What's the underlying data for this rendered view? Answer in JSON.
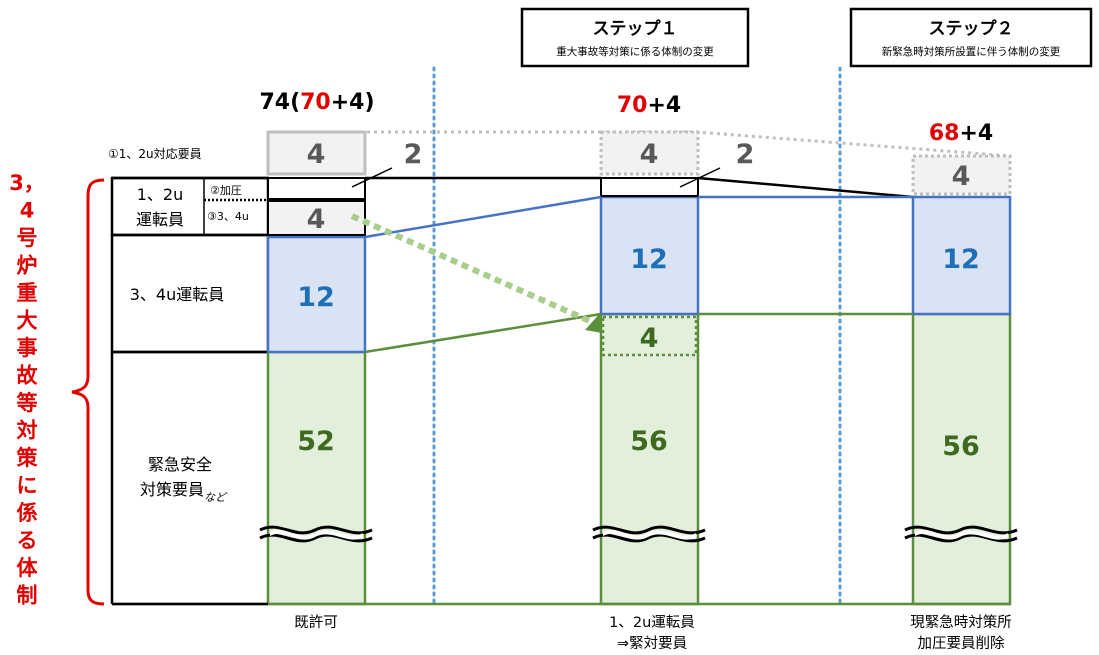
{
  "steps": [
    {
      "title": "ステップ１",
      "subtitle": "重大事故等対策に係る体制の変更"
    },
    {
      "title": "ステップ２",
      "subtitle": "新緊急時対策所設置に伴う体制の変更"
    }
  ],
  "totals": {
    "col1": {
      "open": "74(",
      "red": "70",
      "plus": "+4)"
    },
    "col2": {
      "red": "70",
      "plus": "+4"
    },
    "col3": {
      "red": "68",
      "plus": "+4"
    }
  },
  "row_labels": {
    "r1": "①1、2u対応要員",
    "unit12_a": "1、2u",
    "unit12_b": "運転員",
    "r2": "②加圧",
    "r3": "③3、4u",
    "unit34": "3、4u運転員",
    "emerg_a": "緊急安全",
    "emerg_b": "対策要員",
    "emerg_sub": "など"
  },
  "values": {
    "c1_r1": "4",
    "c1_r2": "2",
    "c1_r3": "4",
    "c1_unit34": "12",
    "c1_emerg": "52",
    "c2_r1": "4",
    "c2_r2": "2",
    "c2_moved": "4",
    "c2_unit34": "12",
    "c2_emerg": "56",
    "c3_r1": "4",
    "c3_unit34": "12",
    "c3_emerg": "56"
  },
  "bottom_labels": {
    "col1": "既許可",
    "col2_a": "1、2u運転員",
    "col2_b": "⇒緊対要員",
    "col3_a": "現緊急時対策所",
    "col3_b": "加圧要員削除"
  },
  "side_label": {
    "lines": [
      "3，",
      "4",
      "号",
      "炉",
      "重",
      "大",
      "事",
      "故",
      "等",
      "対",
      "策",
      "に",
      "係",
      "る",
      "体",
      "制"
    ]
  },
  "colors": {
    "red": "#e00000",
    "blue_line": "#4472c4",
    "blue_fill": "#dae3f3",
    "blue_text": "#1f6fb8",
    "green_line": "#5b8f3a",
    "green_fill": "#e2efda",
    "green_text": "#3e6a1f",
    "grey_box": "#bfbfbf",
    "grey_fill": "#f2f2f2",
    "grey_text": "#595959",
    "dotted_blue": "#5b9bd5"
  }
}
